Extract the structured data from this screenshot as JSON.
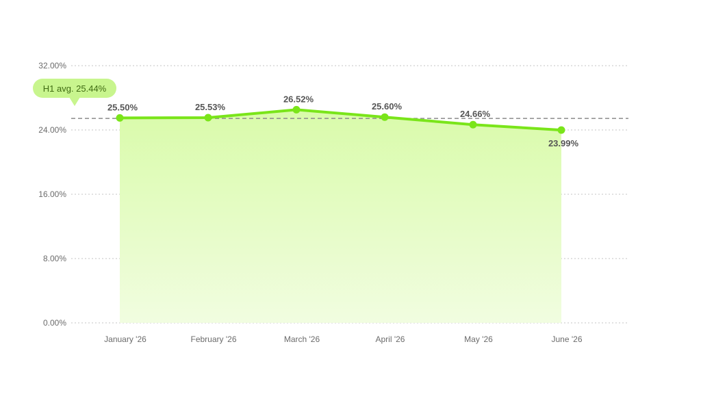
{
  "chart_data": {
    "type": "area",
    "categories": [
      "January '26",
      "February '26",
      "March '26",
      "April '26",
      "May '26",
      "June '26"
    ],
    "series": [
      {
        "values": [
          25.5,
          25.53,
          26.52,
          25.6,
          24.66,
          23.99
        ]
      }
    ],
    "data_labels": [
      "25.50%",
      "25.53%",
      "26.52%",
      "25.60%",
      "24.66%",
      "23.99%"
    ],
    "y_ticks": [
      "0.00%",
      "8.00%",
      "16.00%",
      "24.00%",
      "32.00%"
    ],
    "ylim": [
      0,
      32
    ],
    "grid": true,
    "reference_line": {
      "value": 25.44,
      "label": "H1 avg. 25.44%"
    },
    "colors": {
      "line": "#7ae51a",
      "area_top": "#d9fbaa",
      "area_bottom": "#f1fde0",
      "avg_badge": "#c8f58e",
      "avg_line": "#8a8a8a",
      "grid": "#cfcfcf"
    }
  }
}
